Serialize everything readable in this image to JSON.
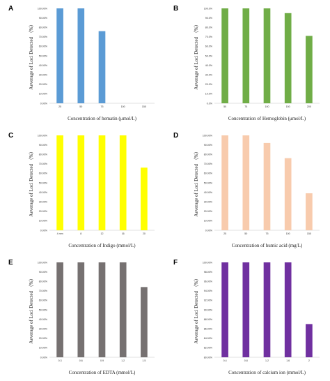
{
  "chart_data": [
    {
      "type": "bar",
      "title": "A",
      "xlabel": "Concentration of hematin (μmol/L)",
      "ylabel": "Aeverage of Loci Detected （%）",
      "categories": [
        "25",
        "50",
        "75",
        "100",
        "150"
      ],
      "values": [
        100,
        100,
        76,
        0,
        0
      ],
      "color": "#5b9bd5",
      "ylim": [
        0,
        100
      ],
      "ytick_step": 10,
      "yticks": [
        "0.00%",
        "10.00%",
        "20.00%",
        "30.00%",
        "40.00%",
        "50.00%",
        "60.00%",
        "70.00%",
        "80.00%",
        "90.00%",
        "100.00%"
      ],
      "grid": false
    },
    {
      "type": "bar",
      "title": "B",
      "xlabel": "Concentration of Hemoglobin (μmol/L)",
      "ylabel": "Aeverage of Loci Detected （%）",
      "categories": [
        "50",
        "75",
        "100",
        "150",
        "200"
      ],
      "values": [
        100,
        100,
        100,
        95,
        71
      ],
      "color": "#70ad47",
      "ylim": [
        0,
        100
      ],
      "ytick_step": 10,
      "yticks": [
        "0.0%",
        "10.0%",
        "20.0%",
        "30.0%",
        "40.0%",
        "50.0%",
        "60.0%",
        "70.0%",
        "80.0%",
        "90.0%",
        "100.0%"
      ],
      "grid": false
    },
    {
      "type": "bar",
      "title": "C",
      "xlabel": "Concentration of Indigo (mmol/L)",
      "ylabel": "Aeverage of Loci Detected （%）",
      "categories": [
        "4 mm",
        "8",
        "12",
        "16",
        "20"
      ],
      "values": [
        100,
        100,
        100,
        100,
        66
      ],
      "color": "#ffff00",
      "ylim": [
        0,
        100
      ],
      "ytick_step": 10,
      "yticks": [
        "0.00%",
        "10.00%",
        "20.00%",
        "30.00%",
        "40.00%",
        "50.00%",
        "60.00%",
        "70.00%",
        "80.00%",
        "90.00%",
        "100.00%"
      ],
      "grid": false
    },
    {
      "type": "bar",
      "title": "D",
      "xlabel": "Concentration of humic acid (mg/L)",
      "ylabel": "Aeverage of Loci Detected （%）",
      "categories": [
        "25",
        "50",
        "75",
        "100",
        "150"
      ],
      "values": [
        100,
        100,
        92,
        76,
        39
      ],
      "color": "#f8cbad",
      "ylim": [
        0,
        100
      ],
      "ytick_step": 10,
      "yticks": [
        "0.00%",
        "10.00%",
        "20.00%",
        "30.00%",
        "40.00%",
        "50.00%",
        "60.00%",
        "70.00%",
        "80.00%",
        "90.00%",
        "100.00%"
      ],
      "grid": false
    },
    {
      "type": "bar",
      "title": "E",
      "xlabel": "Concentration of EDTA (mmol/L)",
      "ylabel": "Aeverage of Loci Detected （%）",
      "categories": [
        "0.3",
        "0.6",
        "0.9",
        "1.2",
        "1.5"
      ],
      "values": [
        100,
        100,
        100,
        100,
        74
      ],
      "color": "#767171",
      "ylim": [
        0,
        100
      ],
      "ytick_step": 10,
      "yticks": [
        "0.00%",
        "10.00%",
        "20.00%",
        "30.00%",
        "40.00%",
        "50.00%",
        "60.00%",
        "70.00%",
        "80.00%",
        "90.00%",
        "100.00%"
      ],
      "grid": false
    },
    {
      "type": "bar",
      "title": "F",
      "xlabel": "Concentration of calcium ion (mmol/L)",
      "ylabel": "Aeverage of Loci Detected （%）",
      "categories": [
        "0.4",
        "0.8",
        "1.2",
        "1.6",
        "2"
      ],
      "values": [
        100,
        100,
        100,
        100,
        87
      ],
      "color": "#7030a0",
      "ylim": [
        80,
        100
      ],
      "ytick_step": 2,
      "yticks": [
        "80.00%",
        "82.00%",
        "84.00%",
        "86.00%",
        "88.00%",
        "90.00%",
        "92.00%",
        "94.00%",
        "96.00%",
        "98.00%",
        "100.00%"
      ],
      "grid": false
    }
  ]
}
